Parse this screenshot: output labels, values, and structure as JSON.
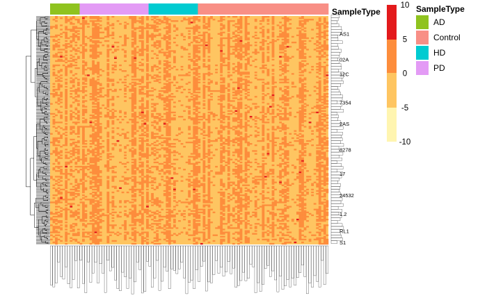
{
  "chart_data": {
    "type": "heatmap",
    "annotation_title": "SampleType",
    "legend_title": "SampleType",
    "groups": [
      {
        "name": "AD",
        "count": 12,
        "color": "#8FC31F"
      },
      {
        "name": "PD",
        "count": 28,
        "color": "#E39BF5"
      },
      {
        "name": "HD",
        "count": 20,
        "color": "#00CBD1"
      },
      {
        "name": "Control",
        "count": 53,
        "color": "#F88F86"
      }
    ],
    "legend_order": [
      "AD",
      "Control",
      "HD",
      "PD"
    ],
    "color_scale": {
      "range": [
        -10,
        10
      ],
      "ticks": [
        10,
        5,
        0,
        -5,
        -10
      ],
      "colors": [
        "#E31A1C",
        "#FD8D3C",
        "#FEC561",
        "#FFF5B0",
        "#FFFFCC"
      ]
    },
    "n_rows": 160,
    "value_levels": [
      0,
      5,
      10
    ],
    "row_labels_visible": [
      "AS1",
      "02A",
      "12C",
      "7354",
      "2AS",
      "8278",
      "17",
      "24532",
      "1.2",
      "RL1",
      "S1"
    ],
    "rows_clustered": true,
    "columns_clustered": false
  }
}
